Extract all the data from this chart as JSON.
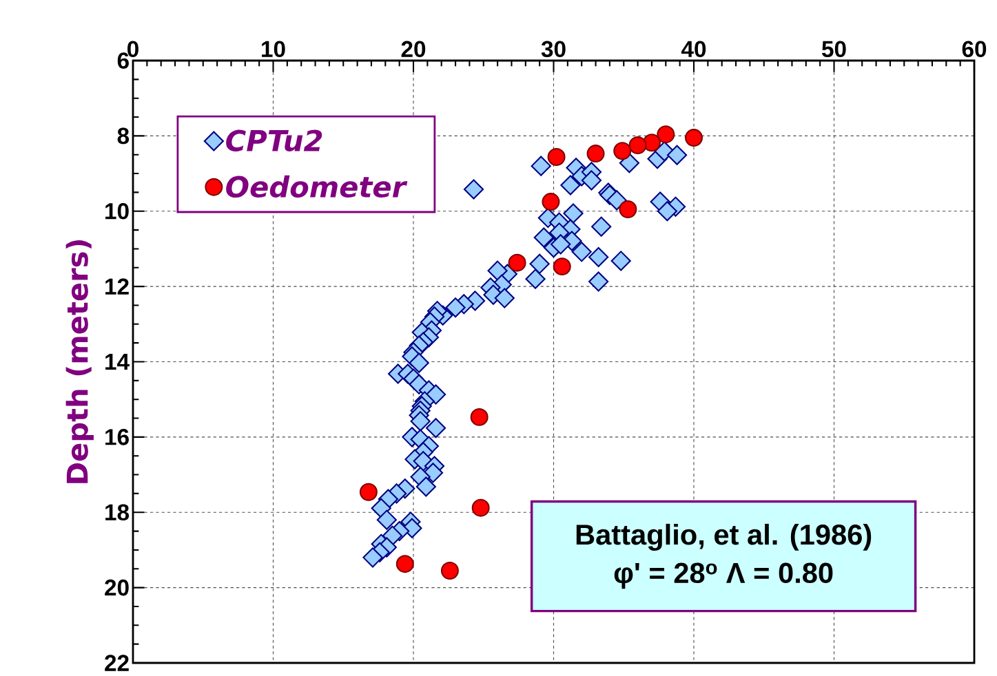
{
  "chart_data": {
    "type": "scatter",
    "ylabel": "Depth (meters)",
    "xlim": [
      0,
      60
    ],
    "xticks": [
      0,
      10,
      20,
      30,
      40,
      50,
      60
    ],
    "ylim": [
      22,
      6
    ],
    "yticks": [
      6,
      8,
      10,
      12,
      14,
      16,
      18,
      20,
      22
    ],
    "grid": true,
    "legend": "top left",
    "annotations": [
      "Battaglio, et al. (1986)",
      "φ' = 28$^{o}$   Λ = 0.80"
    ],
    "series": [
      {
        "name": "CPTu2",
        "color": "#99ccff",
        "marker": "diamond",
        "x": [
          24.3,
          29.1,
          31.6,
          32.0,
          32.7,
          32.7,
          31.2,
          33.9,
          34.0,
          34.5,
          35.4,
          37.4,
          37.9,
          38.8,
          37.6,
          38.7,
          38.1,
          29.6,
          31.4,
          30.4,
          31.2,
          33.4,
          29.3,
          30.4,
          31.3,
          30.0,
          30.5,
          32.0,
          33.2,
          34.8,
          29.0,
          28.7,
          33.2,
          26.7,
          26.0,
          26.3,
          25.5,
          25.7,
          26.5,
          24.4,
          23.6,
          23.0,
          22.1,
          21.7,
          21.5,
          21.2,
          21.3,
          20.6,
          21.1,
          20.7,
          20.4,
          20.0,
          19.9,
          20.4,
          18.9,
          19.6,
          20.0,
          20.4,
          21.1,
          21.6,
          20.8,
          20.6,
          20.5,
          20.4,
          20.5,
          21.6,
          19.9,
          20.5,
          21.1,
          20.7,
          20.1,
          20.7,
          21.5,
          21.4,
          20.5,
          20.9,
          19.4,
          18.8,
          18.2,
          17.7,
          18.1,
          19.8,
          19.9,
          19.0,
          18.5,
          17.7,
          18.1,
          17.6,
          17.1
        ],
        "values": [
          9.42,
          8.8,
          8.85,
          9.07,
          8.96,
          9.18,
          9.31,
          9.51,
          9.57,
          9.71,
          8.72,
          8.61,
          8.41,
          8.51,
          9.75,
          9.88,
          10.0,
          10.18,
          10.06,
          10.3,
          10.48,
          10.41,
          10.7,
          10.57,
          10.79,
          10.97,
          10.88,
          11.08,
          11.22,
          11.32,
          11.4,
          11.8,
          11.87,
          11.67,
          11.58,
          11.95,
          12.03,
          12.22,
          12.31,
          12.38,
          12.47,
          12.56,
          12.77,
          12.65,
          12.8,
          12.95,
          13.17,
          13.22,
          13.35,
          13.48,
          13.57,
          13.75,
          13.86,
          14.03,
          14.32,
          14.32,
          14.45,
          14.6,
          14.76,
          14.87,
          15.05,
          15.18,
          15.3,
          15.42,
          15.58,
          15.76,
          16.0,
          16.06,
          16.24,
          16.4,
          16.59,
          16.64,
          16.77,
          16.95,
          17.06,
          17.32,
          17.37,
          17.5,
          17.65,
          17.89,
          18.2,
          18.25,
          18.42,
          18.5,
          18.62,
          18.84,
          18.93,
          19.06,
          19.2
        ]
      },
      {
        "name": "Oedometer",
        "color": "#ff0000",
        "marker": "circle",
        "x": [
          40.0,
          38.0,
          37.0,
          36.0,
          34.9,
          33.0,
          30.2,
          29.8,
          35.3,
          27.4,
          30.6,
          24.7,
          24.8,
          16.8,
          19.4,
          22.6
        ],
        "values": [
          8.05,
          7.96,
          8.18,
          8.25,
          8.4,
          8.47,
          8.56,
          9.75,
          9.95,
          11.37,
          11.47,
          15.47,
          17.88,
          17.46,
          19.37,
          19.55
        ]
      }
    ]
  }
}
